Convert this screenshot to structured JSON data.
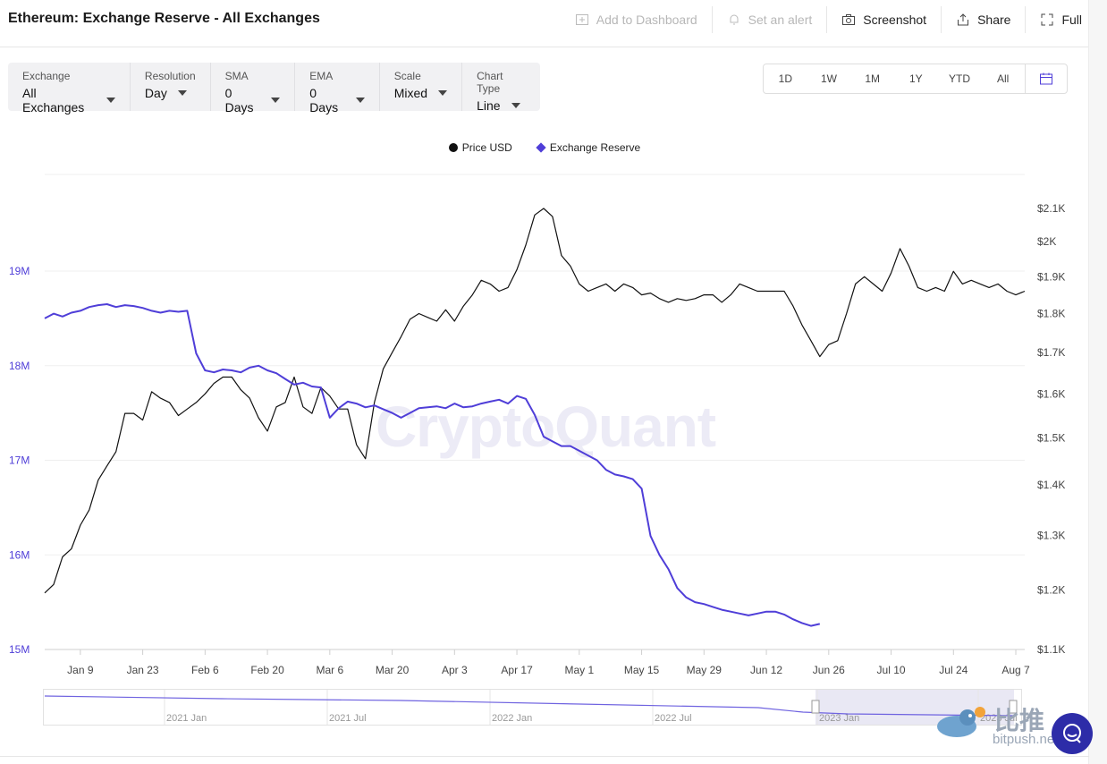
{
  "header": {
    "title": "Ethereum: Exchange Reserve - All Exchanges",
    "actions": [
      {
        "label": "Add to Dashboard",
        "icon": "dashboard-add-icon",
        "enabled": false
      },
      {
        "label": "Set an alert",
        "icon": "bell-icon",
        "enabled": false
      },
      {
        "label": "Screenshot",
        "icon": "camera-icon",
        "enabled": true
      },
      {
        "label": "Share",
        "icon": "share-icon",
        "enabled": true
      },
      {
        "label": "Full",
        "icon": "fullscreen-icon",
        "enabled": true
      }
    ]
  },
  "filters": [
    {
      "label": "Exchange",
      "value": "All Exchanges"
    },
    {
      "label": "Resolution",
      "value": "Day"
    },
    {
      "label": "SMA",
      "value": "0 Days"
    },
    {
      "label": "EMA",
      "value": "0 Days"
    },
    {
      "label": "Scale",
      "value": "Mixed"
    },
    {
      "label": "Chart Type",
      "value": "Line"
    }
  ],
  "ranges": [
    "1D",
    "1W",
    "1M",
    "1Y",
    "YTD",
    "All"
  ],
  "watermark": "CryptoQuant",
  "brand": {
    "name": "比推",
    "site": "bitpush.news"
  },
  "chart_data": {
    "type": "line",
    "legend_placement": "top-center",
    "grid": true,
    "x_ticks": [
      "Jan 9",
      "Jan 23",
      "Feb 6",
      "Feb 20",
      "Mar 6",
      "Mar 20",
      "Apr 3",
      "Apr 17",
      "May 1",
      "May 15",
      "May 29",
      "Jun 12",
      "Jun 26",
      "Jul 10",
      "Jul 24",
      "Aug 7"
    ],
    "x_domain": [
      -8,
      212
    ],
    "y_left": {
      "ticks": [
        "15M",
        "16M",
        "17M",
        "18M",
        "19M"
      ],
      "ylim": [
        15000000,
        19000000
      ]
    },
    "y_right": {
      "ticks": [
        "$1.1K",
        "$1.2K",
        "$1.3K",
        "$1.4K",
        "$1.5K",
        "$1.6K",
        "$1.7K",
        "$1.8K",
        "$1.9K",
        "$2K",
        "$2.1K"
      ],
      "ylim": [
        1100,
        2100
      ],
      "scale": "log"
    },
    "series": [
      {
        "name": "Price USD",
        "axis": "right",
        "color": "#111111",
        "points": [
          [
            -8,
            1195
          ],
          [
            -6,
            1210
          ],
          [
            -4,
            1260
          ],
          [
            -2,
            1275
          ],
          [
            0,
            1320
          ],
          [
            2,
            1350
          ],
          [
            4,
            1410
          ],
          [
            6,
            1440
          ],
          [
            8,
            1470
          ],
          [
            10,
            1555
          ],
          [
            12,
            1555
          ],
          [
            14,
            1540
          ],
          [
            16,
            1605
          ],
          [
            18,
            1590
          ],
          [
            20,
            1580
          ],
          [
            22,
            1550
          ],
          [
            24,
            1565
          ],
          [
            26,
            1580
          ],
          [
            28,
            1600
          ],
          [
            30,
            1625
          ],
          [
            32,
            1640
          ],
          [
            34,
            1640
          ],
          [
            36,
            1610
          ],
          [
            38,
            1590
          ],
          [
            40,
            1545
          ],
          [
            42,
            1515
          ],
          [
            44,
            1570
          ],
          [
            46,
            1580
          ],
          [
            48,
            1640
          ],
          [
            50,
            1570
          ],
          [
            52,
            1555
          ],
          [
            54,
            1615
          ],
          [
            56,
            1595
          ],
          [
            58,
            1565
          ],
          [
            60,
            1565
          ],
          [
            62,
            1485
          ],
          [
            64,
            1455
          ],
          [
            66,
            1580
          ],
          [
            68,
            1660
          ],
          [
            70,
            1700
          ],
          [
            72,
            1740
          ],
          [
            74,
            1785
          ],
          [
            76,
            1800
          ],
          [
            78,
            1790
          ],
          [
            80,
            1780
          ],
          [
            82,
            1810
          ],
          [
            84,
            1780
          ],
          [
            86,
            1820
          ],
          [
            88,
            1850
          ],
          [
            90,
            1890
          ],
          [
            92,
            1880
          ],
          [
            94,
            1860
          ],
          [
            96,
            1870
          ],
          [
            98,
            1920
          ],
          [
            100,
            1990
          ],
          [
            102,
            2080
          ],
          [
            104,
            2100
          ],
          [
            106,
            2075
          ],
          [
            108,
            1960
          ],
          [
            110,
            1930
          ],
          [
            112,
            1880
          ],
          [
            114,
            1860
          ],
          [
            116,
            1870
          ],
          [
            118,
            1880
          ],
          [
            120,
            1860
          ],
          [
            122,
            1880
          ],
          [
            124,
            1870
          ],
          [
            126,
            1850
          ],
          [
            128,
            1855
          ],
          [
            130,
            1840
          ],
          [
            132,
            1830
          ],
          [
            134,
            1840
          ],
          [
            136,
            1835
          ],
          [
            138,
            1840
          ],
          [
            140,
            1850
          ],
          [
            142,
            1850
          ],
          [
            144,
            1830
          ],
          [
            146,
            1850
          ],
          [
            148,
            1880
          ],
          [
            150,
            1870
          ],
          [
            152,
            1860
          ],
          [
            154,
            1860
          ],
          [
            156,
            1860
          ],
          [
            158,
            1860
          ],
          [
            160,
            1820
          ],
          [
            162,
            1770
          ],
          [
            164,
            1730
          ],
          [
            166,
            1690
          ],
          [
            168,
            1720
          ],
          [
            170,
            1730
          ],
          [
            172,
            1800
          ],
          [
            174,
            1880
          ],
          [
            176,
            1900
          ],
          [
            178,
            1880
          ],
          [
            180,
            1860
          ],
          [
            182,
            1910
          ],
          [
            184,
            1980
          ],
          [
            186,
            1930
          ],
          [
            188,
            1870
          ],
          [
            190,
            1860
          ],
          [
            192,
            1870
          ],
          [
            194,
            1860
          ],
          [
            196,
            1915
          ],
          [
            198,
            1880
          ],
          [
            200,
            1890
          ],
          [
            202,
            1880
          ],
          [
            204,
            1870
          ],
          [
            206,
            1880
          ],
          [
            208,
            1860
          ],
          [
            210,
            1850
          ],
          [
            212,
            1860
          ]
        ]
      },
      {
        "name": "Exchange Reserve",
        "axis": "left",
        "color": "#4f3ed8",
        "points": [
          [
            -8,
            18500000
          ],
          [
            -6,
            18550000
          ],
          [
            -4,
            18520000
          ],
          [
            -2,
            18560000
          ],
          [
            0,
            18580000
          ],
          [
            2,
            18620000
          ],
          [
            4,
            18640000
          ],
          [
            6,
            18650000
          ],
          [
            8,
            18620000
          ],
          [
            10,
            18640000
          ],
          [
            12,
            18630000
          ],
          [
            14,
            18610000
          ],
          [
            16,
            18580000
          ],
          [
            18,
            18560000
          ],
          [
            20,
            18580000
          ],
          [
            22,
            18570000
          ],
          [
            24,
            18580000
          ],
          [
            26,
            18130000
          ],
          [
            28,
            17950000
          ],
          [
            30,
            17930000
          ],
          [
            32,
            17960000
          ],
          [
            34,
            17950000
          ],
          [
            36,
            17930000
          ],
          [
            38,
            17980000
          ],
          [
            40,
            18000000
          ],
          [
            42,
            17950000
          ],
          [
            44,
            17920000
          ],
          [
            46,
            17860000
          ],
          [
            48,
            17800000
          ],
          [
            50,
            17820000
          ],
          [
            52,
            17780000
          ],
          [
            54,
            17770000
          ],
          [
            56,
            17450000
          ],
          [
            58,
            17550000
          ],
          [
            60,
            17620000
          ],
          [
            62,
            17600000
          ],
          [
            64,
            17560000
          ],
          [
            66,
            17580000
          ],
          [
            68,
            17540000
          ],
          [
            70,
            17500000
          ],
          [
            72,
            17450000
          ],
          [
            74,
            17500000
          ],
          [
            76,
            17550000
          ],
          [
            78,
            17560000
          ],
          [
            80,
            17570000
          ],
          [
            82,
            17550000
          ],
          [
            84,
            17600000
          ],
          [
            86,
            17560000
          ],
          [
            88,
            17570000
          ],
          [
            90,
            17600000
          ],
          [
            92,
            17620000
          ],
          [
            94,
            17640000
          ],
          [
            96,
            17600000
          ],
          [
            98,
            17680000
          ],
          [
            100,
            17650000
          ],
          [
            102,
            17480000
          ],
          [
            104,
            17250000
          ],
          [
            106,
            17200000
          ],
          [
            108,
            17150000
          ],
          [
            110,
            17150000
          ],
          [
            112,
            17100000
          ],
          [
            114,
            17050000
          ],
          [
            116,
            17000000
          ],
          [
            118,
            16900000
          ],
          [
            120,
            16850000
          ],
          [
            122,
            16830000
          ],
          [
            124,
            16800000
          ],
          [
            126,
            16700000
          ],
          [
            128,
            16200000
          ],
          [
            130,
            16000000
          ],
          [
            132,
            15850000
          ],
          [
            134,
            15650000
          ],
          [
            136,
            15550000
          ],
          [
            138,
            15500000
          ],
          [
            140,
            15480000
          ],
          [
            142,
            15450000
          ],
          [
            144,
            15420000
          ],
          [
            146,
            15400000
          ],
          [
            148,
            15380000
          ],
          [
            150,
            15360000
          ],
          [
            152,
            15380000
          ],
          [
            154,
            15400000
          ],
          [
            156,
            15400000
          ],
          [
            158,
            15370000
          ],
          [
            160,
            15320000
          ],
          [
            162,
            15280000
          ],
          [
            164,
            15250000
          ],
          [
            166,
            15270000
          ]
        ]
      }
    ]
  },
  "navigator": {
    "labels": [
      "2021 Jan",
      "2021 Jul",
      "2022 Jan",
      "2022 Jul",
      "2023 Jan",
      "2023 Jul"
    ]
  }
}
